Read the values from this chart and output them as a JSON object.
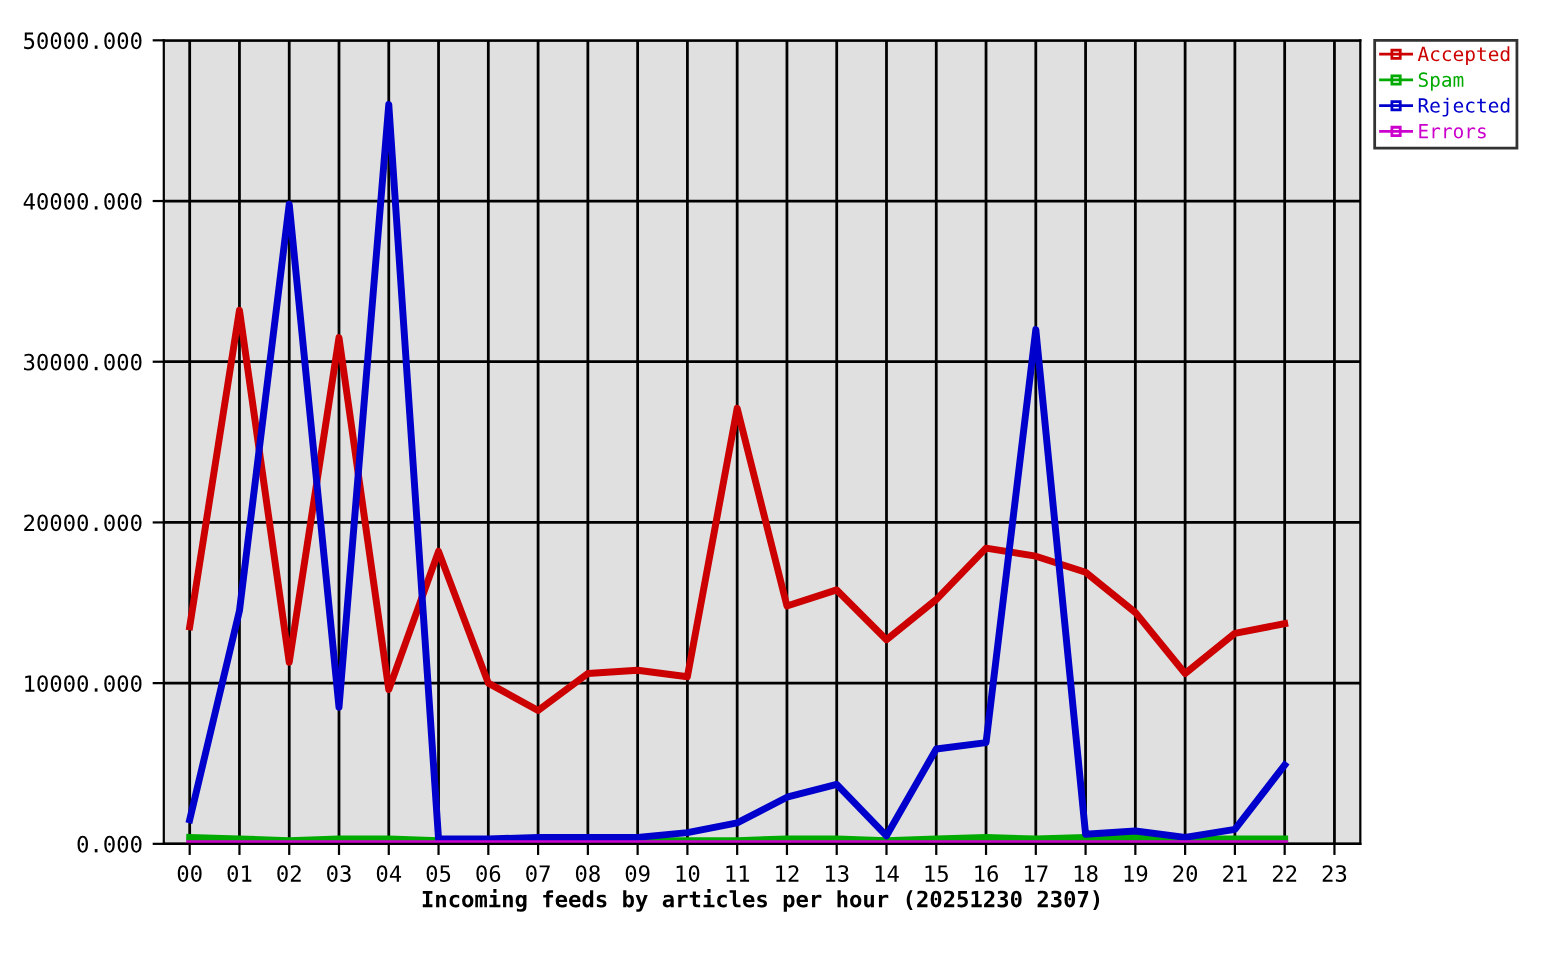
{
  "chart_data": {
    "type": "line",
    "xlabel": "Incoming feeds by articles per hour (20251230 2307)",
    "categories": [
      "00",
      "01",
      "02",
      "03",
      "04",
      "05",
      "06",
      "07",
      "08",
      "09",
      "10",
      "11",
      "12",
      "13",
      "14",
      "15",
      "16",
      "17",
      "18",
      "19",
      "20",
      "21",
      "22",
      "23"
    ],
    "series": [
      {
        "name": "Accepted",
        "color": "#cc0000",
        "values": [
          13500,
          33200,
          11300,
          31500,
          9600,
          18200,
          10000,
          8300,
          10600,
          10800,
          10400,
          27100,
          14800,
          15800,
          12700,
          15200,
          18400,
          17900,
          16900,
          14400,
          10600,
          13100,
          13700,
          null
        ]
      },
      {
        "name": "Spam",
        "color": "#00aa00",
        "values": [
          400,
          300,
          200,
          300,
          300,
          200,
          200,
          null,
          200,
          200,
          200,
          200,
          300,
          300,
          200,
          300,
          400,
          300,
          400,
          400,
          300,
          300,
          300,
          null
        ]
      },
      {
        "name": "Rejected",
        "color": "#0000cc",
        "values": [
          1500,
          14500,
          39800,
          8500,
          46000,
          300,
          300,
          400,
          400,
          400,
          700,
          1300,
          2900,
          3700,
          500,
          5900,
          6300,
          32000,
          600,
          800,
          400,
          900,
          4900,
          null
        ]
      },
      {
        "name": "Errors",
        "color": "#cc00cc",
        "values": [
          0,
          0,
          0,
          0,
          0,
          0,
          0,
          0,
          0,
          0,
          0,
          0,
          0,
          0,
          0,
          0,
          0,
          0,
          0,
          0,
          0,
          0,
          0,
          null
        ]
      }
    ],
    "ylim": [
      0,
      50000
    ],
    "yticks": [
      {
        "value": 0,
        "label": "0.000"
      },
      {
        "value": 10000,
        "label": "10000.000"
      },
      {
        "value": 20000,
        "label": "20000.000"
      },
      {
        "value": 30000,
        "label": "30000.000"
      },
      {
        "value": 40000,
        "label": "40000.000"
      },
      {
        "value": 50000,
        "label": "50000.000"
      }
    ],
    "grid": true,
    "legend": "top right",
    "line_style": "solid"
  }
}
